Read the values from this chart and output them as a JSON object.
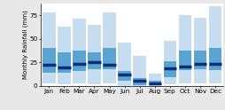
{
  "months": [
    "Jan",
    "Feb",
    "Mar",
    "Apr",
    "May",
    "Jun",
    "Jul",
    "Aug",
    "Sep",
    "Oct",
    "Nov",
    "Dec"
  ],
  "min_vals": [
    3,
    2,
    3,
    2,
    3,
    0,
    0,
    0,
    2,
    3,
    3,
    3
  ],
  "max_vals": [
    78,
    63,
    72,
    65,
    78,
    46,
    32,
    13,
    48,
    75,
    73,
    85
  ],
  "p25_vals": [
    14,
    14,
    16,
    18,
    18,
    5,
    1,
    1,
    9,
    17,
    18,
    17
  ],
  "p75_vals": [
    40,
    36,
    38,
    36,
    40,
    16,
    8,
    5,
    26,
    38,
    38,
    40
  ],
  "median_vals": [
    22,
    20,
    23,
    25,
    22,
    12,
    5,
    3,
    19,
    21,
    23,
    23
  ],
  "color_minmax": "#c6dcef",
  "color_iqr": "#5ba3d0",
  "color_median": "#08307a",
  "ylabel": "Monthly Rainfall (mm)",
  "ylim": [
    0,
    88
  ],
  "yticks": [
    0,
    25,
    50,
    75
  ],
  "bar_width": 0.85,
  "background_color": "#e8e8e8"
}
